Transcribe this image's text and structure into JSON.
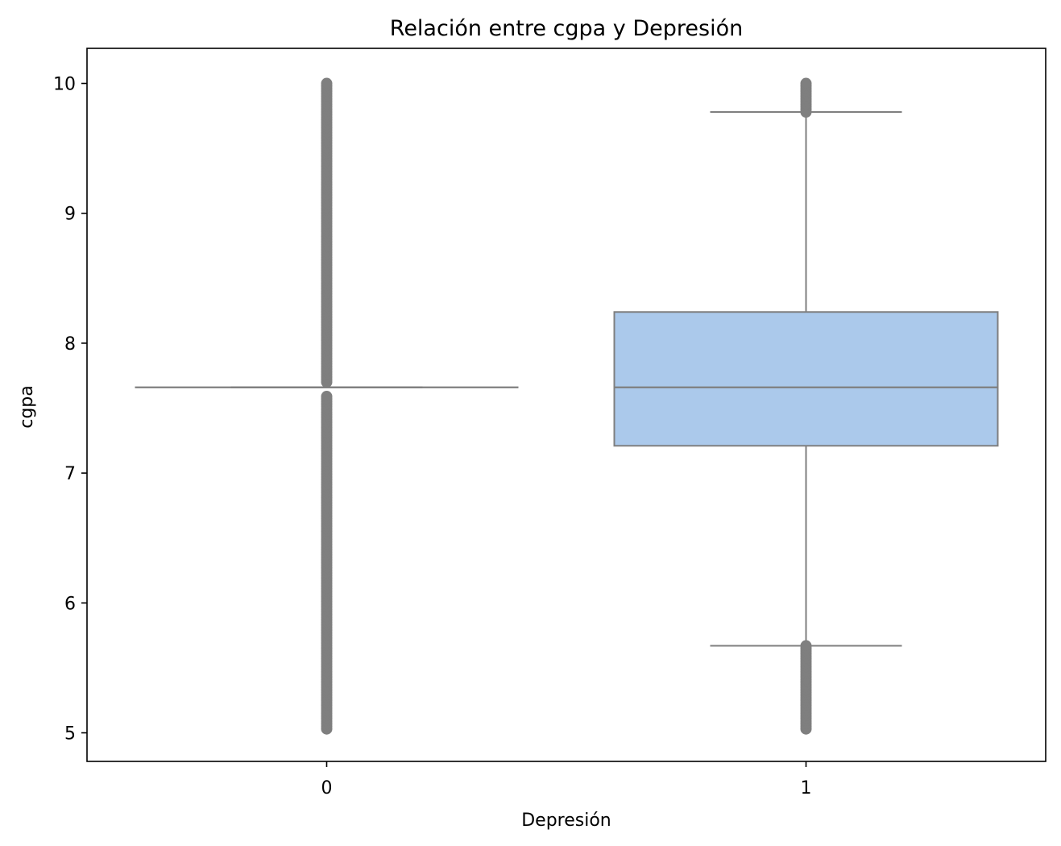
{
  "chart_data": {
    "type": "boxplot",
    "title": "Relación entre cgpa y Depresión",
    "xlabel": "Depresión",
    "ylabel": "cgpa",
    "categories": [
      "0",
      "1"
    ],
    "yticks": [
      5,
      6,
      7,
      8,
      9,
      10
    ],
    "ylim": [
      4.78,
      10.27
    ],
    "grid": false,
    "boxes": [
      {
        "category": "0",
        "q1": 7.66,
        "median": 7.66,
        "q3": 7.66,
        "whisker_low": 7.66,
        "whisker_high": 7.66,
        "outlier_ranges": [
          [
            5.03,
            7.6
          ],
          [
            7.7,
            10.0
          ]
        ]
      },
      {
        "category": "1",
        "q1": 7.21,
        "median": 7.66,
        "q3": 8.24,
        "whisker_low": 5.67,
        "whisker_high": 9.78,
        "outlier_ranges": [
          [
            5.03,
            5.67
          ],
          [
            9.78,
            10.0
          ]
        ]
      }
    ],
    "box_fill_color": "#abc9eb",
    "line_color": "#7f7f7f"
  }
}
